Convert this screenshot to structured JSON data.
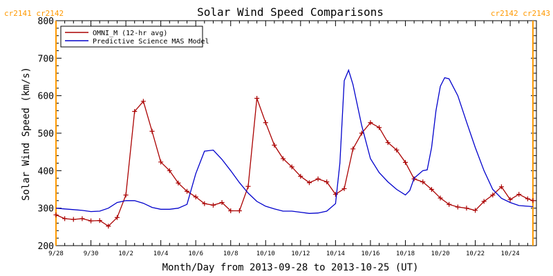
{
  "chart_data": {
    "type": "line",
    "title": "Solar Wind Speed Comparisons",
    "xlabel": "Month/Day from 2013-09-28 to 2013-10-25 (UT)",
    "ylabel": "Solar Wind Speed (km/s)",
    "xlim": [
      0,
      27.5
    ],
    "ylim": [
      200,
      800
    ],
    "y_ticks": [
      200,
      300,
      400,
      500,
      600,
      700,
      800
    ],
    "x_ticks": [
      {
        "x": 0,
        "label": "9/28"
      },
      {
        "x": 2,
        "label": "9/30"
      },
      {
        "x": 4,
        "label": "10/2"
      },
      {
        "x": 6,
        "label": "10/4"
      },
      {
        "x": 8,
        "label": "10/6"
      },
      {
        "x": 10,
        "label": "10/8"
      },
      {
        "x": 12,
        "label": "10/10"
      },
      {
        "x": 14,
        "label": "10/12"
      },
      {
        "x": 16,
        "label": "10/14"
      },
      {
        "x": 18,
        "label": "10/16"
      },
      {
        "x": 20,
        "label": "10/18"
      },
      {
        "x": 22,
        "label": "10/20"
      },
      {
        "x": 24,
        "label": "10/22"
      },
      {
        "x": 26,
        "label": "10/24"
      }
    ],
    "grid": false,
    "legend_position": "top-left",
    "carrington_markers": [
      {
        "x": 0,
        "label": "cr2141 cr2142",
        "side": "left"
      },
      {
        "x": 27.3,
        "label": "cr2142 cr2143",
        "side": "right"
      }
    ],
    "series": [
      {
        "name": "OMNI_M (12-hr avg)",
        "color": "#aa0000",
        "marker": "plus",
        "x": [
          0,
          0.5,
          1,
          1.5,
          2,
          2.5,
          3,
          3.5,
          4,
          4.5,
          5,
          5.5,
          6,
          6.5,
          7,
          7.5,
          8,
          8.5,
          9,
          9.5,
          10,
          10.5,
          11,
          11.5,
          12,
          12.5,
          13,
          13.5,
          14,
          14.5,
          15,
          15.5,
          16,
          16.5,
          17,
          17.5,
          18,
          18.5,
          19,
          19.5,
          20,
          20.5,
          21,
          21.5,
          22,
          22.5,
          23,
          23.5,
          24,
          24.5,
          25,
          25.5,
          26,
          26.5,
          27,
          27.3
        ],
        "values": [
          282,
          272,
          270,
          272,
          266,
          267,
          252,
          275,
          335,
          558,
          585,
          505,
          423,
          400,
          367,
          345,
          330,
          312,
          308,
          315,
          293,
          293,
          358,
          593,
          528,
          468,
          432,
          410,
          385,
          368,
          378,
          370,
          337,
          352,
          458,
          500,
          528,
          515,
          475,
          455,
          422,
          378,
          370,
          350,
          327,
          310,
          303,
          300,
          294,
          318,
          335,
          357,
          323,
          337,
          325,
          320
        ]
      },
      {
        "name": "Predictive Science MAS Model",
        "color": "#0000cc",
        "x": [
          0,
          0.5,
          1,
          1.5,
          2,
          2.5,
          3,
          3.5,
          4,
          4.5,
          5,
          5.5,
          6,
          6.5,
          7,
          7.5,
          8,
          8.5,
          9,
          9.5,
          10,
          10.5,
          11,
          11.5,
          12,
          12.5,
          13,
          13.5,
          14,
          14.5,
          15,
          15.5,
          16,
          16.25,
          16.5,
          16.75,
          17,
          17.5,
          18,
          18.5,
          19,
          19.5,
          20,
          20.25,
          20.5,
          21,
          21.25,
          21.5,
          21.75,
          22,
          22.25,
          22.5,
          23,
          23.5,
          24,
          24.5,
          25,
          25.5,
          26,
          26.5,
          27,
          27.3
        ],
        "values": [
          300,
          298,
          296,
          294,
          291,
          292,
          300,
          315,
          320,
          320,
          313,
          302,
          297,
          297,
          300,
          310,
          392,
          452,
          455,
          430,
          400,
          368,
          340,
          318,
          305,
          298,
          292,
          292,
          289,
          286,
          287,
          292,
          312,
          420,
          640,
          668,
          630,
          520,
          432,
          395,
          370,
          350,
          335,
          347,
          380,
          400,
          402,
          462,
          560,
          625,
          648,
          645,
          600,
          530,
          462,
          400,
          350,
          326,
          315,
          307,
          305,
          304
        ]
      }
    ]
  }
}
